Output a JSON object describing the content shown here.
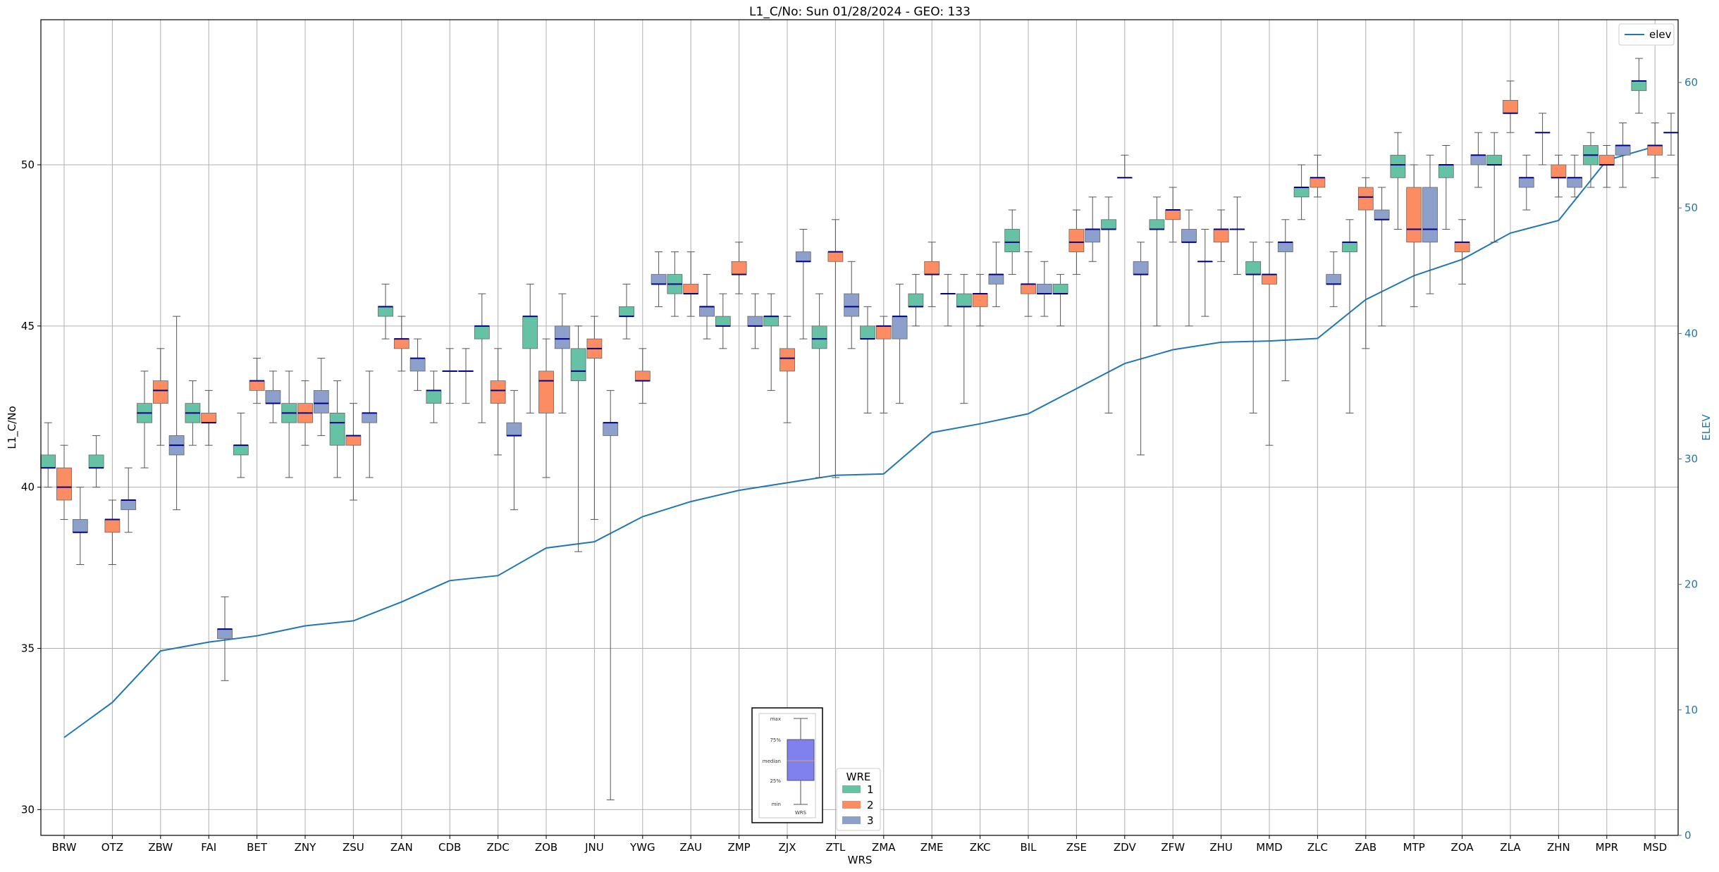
{
  "chart_data": {
    "type": "box",
    "title": "L1_C/No: Sun 01/28/2024 - GEO: 133",
    "xlabel": "WRS",
    "ylabel": "L1_C/No",
    "y2label": "ELEV",
    "ylim": [
      29.2,
      54.5
    ],
    "y2lim": [
      0,
      65
    ],
    "yticks": [
      30,
      35,
      40,
      45,
      50
    ],
    "y2ticks": [
      0,
      10,
      20,
      30,
      40,
      50,
      60
    ],
    "grid": true,
    "colors": {
      "wre_1": "#66c2a5",
      "wre_2": "#fc8d62",
      "wre_3": "#8da0cb",
      "median": "#00008b",
      "elev_line": "#1f77b4",
      "whisker": "#555555"
    },
    "categories": [
      "BRW",
      "OTZ",
      "ZBW",
      "FAI",
      "BET",
      "ZNY",
      "ZSU",
      "ZAN",
      "CDB",
      "ZDC",
      "ZOB",
      "JNU",
      "YWG",
      "ZAU",
      "ZMP",
      "ZJX",
      "ZTL",
      "ZMA",
      "ZME",
      "ZKC",
      "BIL",
      "ZSE",
      "ZDV",
      "ZFW",
      "ZHU",
      "MMD",
      "ZLC",
      "ZAB",
      "MTP",
      "ZOA",
      "ZLA",
      "ZHN",
      "MPR",
      "MSD"
    ],
    "legend_wre": {
      "title": "WRE",
      "items": [
        "1",
        "2",
        "3"
      ]
    },
    "legend_elev": "elev",
    "inset_labels": [
      "max",
      "75%",
      "median",
      "25%",
      "min",
      "WRS"
    ],
    "elev": [
      7.8,
      10.6,
      14.7,
      15.4,
      15.9,
      16.7,
      17.1,
      18.6,
      20.3,
      20.7,
      22.9,
      23.4,
      25.4,
      26.6,
      27.5,
      28.1,
      28.7,
      28.8,
      32.1,
      32.8,
      33.6,
      35.6,
      37.6,
      38.7,
      39.3,
      39.4,
      39.6,
      42.7,
      44.6,
      45.9,
      48.0,
      49.0,
      53.8,
      54.9
    ],
    "series": [
      {
        "name": "1",
        "boxes": [
          [
            0,
            40.0,
            40.6,
            40.6,
            41.0,
            42.0
          ],
          [
            1,
            40.0,
            40.6,
            40.6,
            41.0,
            41.6
          ],
          [
            2,
            40.6,
            42.0,
            42.3,
            42.6,
            43.6
          ],
          [
            3,
            41.3,
            42.0,
            42.3,
            42.6,
            43.3
          ],
          [
            4,
            40.3,
            41.0,
            41.3,
            41.3,
            42.3
          ],
          [
            5,
            40.3,
            42.0,
            42.3,
            42.6,
            43.6
          ],
          [
            6,
            40.3,
            41.3,
            42.0,
            42.3,
            43.3
          ],
          [
            7,
            44.6,
            45.3,
            45.6,
            45.6,
            46.3
          ],
          [
            8,
            42.0,
            42.6,
            43.0,
            43.0,
            43.6
          ],
          [
            9,
            42.0,
            44.6,
            45.0,
            45.0,
            46.0
          ],
          [
            10,
            42.3,
            44.3,
            45.3,
            45.3,
            46.3
          ],
          [
            11,
            38.0,
            43.3,
            43.6,
            44.3,
            45.0
          ],
          [
            12,
            44.6,
            45.3,
            45.3,
            45.6,
            46.3
          ],
          [
            13,
            45.3,
            46.0,
            46.3,
            46.6,
            47.3
          ],
          [
            14,
            44.3,
            45.0,
            45.0,
            45.3,
            46.0
          ],
          [
            15,
            43.0,
            45.0,
            45.3,
            45.3,
            46.0
          ],
          [
            16,
            40.3,
            44.3,
            44.6,
            45.0,
            46.0
          ],
          [
            17,
            42.3,
            44.6,
            44.6,
            45.0,
            45.6
          ],
          [
            18,
            45.0,
            45.6,
            45.6,
            46.0,
            46.6
          ],
          [
            19,
            42.6,
            45.6,
            45.6,
            46.0,
            46.6
          ],
          [
            20,
            46.6,
            47.3,
            47.6,
            48.0,
            48.6
          ],
          [
            21,
            45.0,
            46.0,
            46.0,
            46.3,
            46.6
          ],
          [
            22,
            42.3,
            48.0,
            48.0,
            48.3,
            49.0
          ],
          [
            23,
            45.0,
            48.0,
            48.0,
            48.3,
            49.0
          ],
          [
            24,
            45.3,
            47.0,
            47.0,
            47.0,
            48.0
          ],
          [
            25,
            42.3,
            46.6,
            46.6,
            47.0,
            47.6
          ],
          [
            26,
            48.3,
            49.0,
            49.3,
            49.3,
            50.0
          ],
          [
            27,
            42.3,
            47.3,
            47.6,
            47.6,
            48.3
          ],
          [
            28,
            48.0,
            49.6,
            50.0,
            50.3,
            51.0
          ],
          [
            29,
            48.0,
            49.6,
            50.0,
            50.0,
            50.6
          ],
          [
            30,
            47.6,
            50.0,
            50.0,
            50.3,
            51.0
          ],
          [
            31,
            50.0,
            51.0,
            51.0,
            51.0,
            51.6
          ],
          [
            32,
            49.3,
            50.0,
            50.3,
            50.6,
            51.0
          ],
          [
            33,
            51.6,
            52.3,
            52.6,
            52.6,
            53.3
          ]
        ]
      },
      {
        "name": "2",
        "boxes": [
          [
            0,
            39.0,
            39.6,
            40.0,
            40.6,
            41.3
          ],
          [
            1,
            37.6,
            38.6,
            39.0,
            39.0,
            39.6
          ],
          [
            2,
            41.3,
            42.6,
            43.0,
            43.3,
            44.3
          ],
          [
            3,
            41.3,
            42.0,
            42.0,
            42.3,
            43.0
          ],
          [
            4,
            42.6,
            43.0,
            43.3,
            43.3,
            44.0
          ],
          [
            5,
            41.3,
            42.0,
            42.3,
            42.6,
            43.3
          ],
          [
            6,
            39.6,
            41.3,
            41.6,
            41.6,
            42.6
          ],
          [
            7,
            43.6,
            44.3,
            44.6,
            44.6,
            45.3
          ],
          [
            8,
            42.6,
            43.6,
            43.6,
            43.6,
            44.3
          ],
          [
            9,
            41.0,
            42.6,
            43.0,
            43.3,
            44.3
          ],
          [
            10,
            40.3,
            42.3,
            43.3,
            43.6,
            44.6
          ],
          [
            11,
            39.0,
            44.0,
            44.3,
            44.6,
            45.3
          ],
          [
            12,
            42.6,
            43.3,
            43.3,
            43.6,
            44.3
          ],
          [
            13,
            45.3,
            46.0,
            46.0,
            46.3,
            47.3
          ],
          [
            14,
            46.0,
            46.6,
            46.6,
            47.0,
            47.6
          ],
          [
            15,
            42.0,
            43.6,
            44.0,
            44.3,
            45.3
          ],
          [
            16,
            40.3,
            47.0,
            47.3,
            47.3,
            48.3
          ],
          [
            17,
            42.3,
            44.6,
            45.0,
            45.0,
            45.3
          ],
          [
            18,
            45.6,
            46.6,
            46.6,
            47.0,
            47.6
          ],
          [
            19,
            45.0,
            45.6,
            46.0,
            46.0,
            46.6
          ],
          [
            20,
            45.3,
            46.0,
            46.3,
            46.3,
            47.3
          ],
          [
            21,
            46.6,
            47.3,
            47.6,
            48.0,
            48.6
          ],
          [
            22,
            49.6,
            49.6,
            49.6,
            49.6,
            50.3
          ],
          [
            23,
            47.6,
            48.3,
            48.6,
            48.6,
            49.3
          ],
          [
            24,
            47.0,
            47.6,
            48.0,
            48.0,
            48.6
          ],
          [
            25,
            41.3,
            46.3,
            46.6,
            46.6,
            47.6
          ],
          [
            26,
            49.0,
            49.3,
            49.6,
            49.6,
            50.3
          ],
          [
            27,
            44.3,
            48.6,
            49.0,
            49.3,
            49.6
          ],
          [
            28,
            45.6,
            47.6,
            48.0,
            49.3,
            50.0
          ],
          [
            29,
            46.3,
            47.3,
            47.6,
            47.6,
            48.3
          ],
          [
            30,
            51.0,
            51.6,
            51.6,
            52.0,
            52.6
          ],
          [
            31,
            49.0,
            49.6,
            49.6,
            50.0,
            50.3
          ],
          [
            32,
            49.3,
            50.0,
            50.0,
            50.3,
            50.6
          ],
          [
            33,
            49.6,
            50.3,
            50.6,
            50.6,
            51.3
          ]
        ]
      },
      {
        "name": "3",
        "boxes": [
          [
            0,
            37.6,
            38.6,
            38.6,
            39.0,
            40.0
          ],
          [
            1,
            38.6,
            39.3,
            39.6,
            39.6,
            40.6
          ],
          [
            2,
            39.3,
            41.0,
            41.3,
            41.6,
            45.3
          ],
          [
            3,
            34.0,
            35.3,
            35.6,
            35.6,
            36.6
          ],
          [
            4,
            42.0,
            42.6,
            42.6,
            43.0,
            43.6
          ],
          [
            5,
            41.6,
            42.3,
            42.6,
            43.0,
            44.0
          ],
          [
            6,
            40.3,
            42.0,
            42.3,
            42.3,
            43.6
          ],
          [
            7,
            43.0,
            43.6,
            44.0,
            44.0,
            44.6
          ],
          [
            8,
            42.6,
            43.6,
            43.6,
            43.6,
            44.3
          ],
          [
            9,
            39.3,
            41.6,
            41.6,
            42.0,
            43.0
          ],
          [
            10,
            42.3,
            44.3,
            44.6,
            45.0,
            46.0
          ],
          [
            11,
            30.3,
            41.6,
            42.0,
            42.0,
            43.0
          ],
          [
            12,
            45.6,
            46.3,
            46.3,
            46.6,
            47.3
          ],
          [
            13,
            44.6,
            45.3,
            45.6,
            45.6,
            46.6
          ],
          [
            14,
            44.3,
            45.0,
            45.0,
            45.3,
            46.0
          ],
          [
            15,
            44.6,
            47.0,
            47.0,
            47.3,
            48.0
          ],
          [
            16,
            44.3,
            45.3,
            45.6,
            46.0,
            47.0
          ],
          [
            17,
            42.6,
            44.6,
            45.3,
            45.3,
            46.3
          ],
          [
            18,
            45.0,
            46.0,
            46.0,
            46.0,
            46.6
          ],
          [
            19,
            45.6,
            46.3,
            46.6,
            46.6,
            47.6
          ],
          [
            20,
            45.3,
            46.0,
            46.0,
            46.3,
            47.0
          ],
          [
            21,
            47.0,
            47.6,
            48.0,
            48.0,
            49.0
          ],
          [
            22,
            41.0,
            46.6,
            46.6,
            47.0,
            47.6
          ],
          [
            23,
            45.0,
            47.6,
            47.6,
            48.0,
            48.6
          ],
          [
            24,
            46.6,
            48.0,
            48.0,
            48.0,
            49.0
          ],
          [
            25,
            43.3,
            47.3,
            47.6,
            47.6,
            48.3
          ],
          [
            26,
            45.6,
            46.3,
            46.3,
            46.6,
            47.3
          ],
          [
            27,
            45.0,
            48.3,
            48.3,
            48.6,
            49.3
          ],
          [
            28,
            46.0,
            47.6,
            48.0,
            49.3,
            50.3
          ],
          [
            29,
            49.3,
            50.0,
            50.3,
            50.3,
            51.0
          ],
          [
            30,
            48.6,
            49.3,
            49.6,
            49.6,
            50.3
          ],
          [
            31,
            49.0,
            49.3,
            49.6,
            49.6,
            50.3
          ],
          [
            32,
            49.3,
            50.3,
            50.6,
            50.6,
            51.3
          ],
          [
            33,
            50.3,
            51.0,
            51.0,
            51.0,
            51.6
          ]
        ]
      }
    ]
  }
}
